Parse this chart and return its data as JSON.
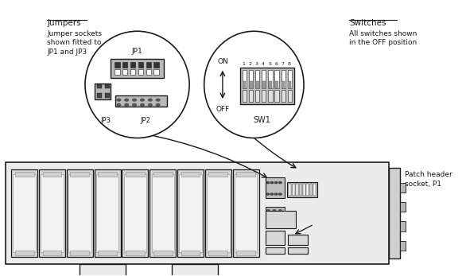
{
  "bg_color": "#ffffff",
  "line_color": "#1a1a1a",
  "jumpers_label": "Jumpers",
  "jumpers_desc": "Jumper sockets\nshown fitted to\nJP1 and JP3",
  "switches_label": "Switches",
  "switches_desc": "All switches shown\nin the OFF position",
  "patch_label": "Patch header\nsocket, P1",
  "jp1_label": "JP1",
  "jp2_label": "JP2",
  "jp3_label": "JP3",
  "sw1_label": "SW1",
  "on_label": "ON",
  "off_label": "OFF"
}
